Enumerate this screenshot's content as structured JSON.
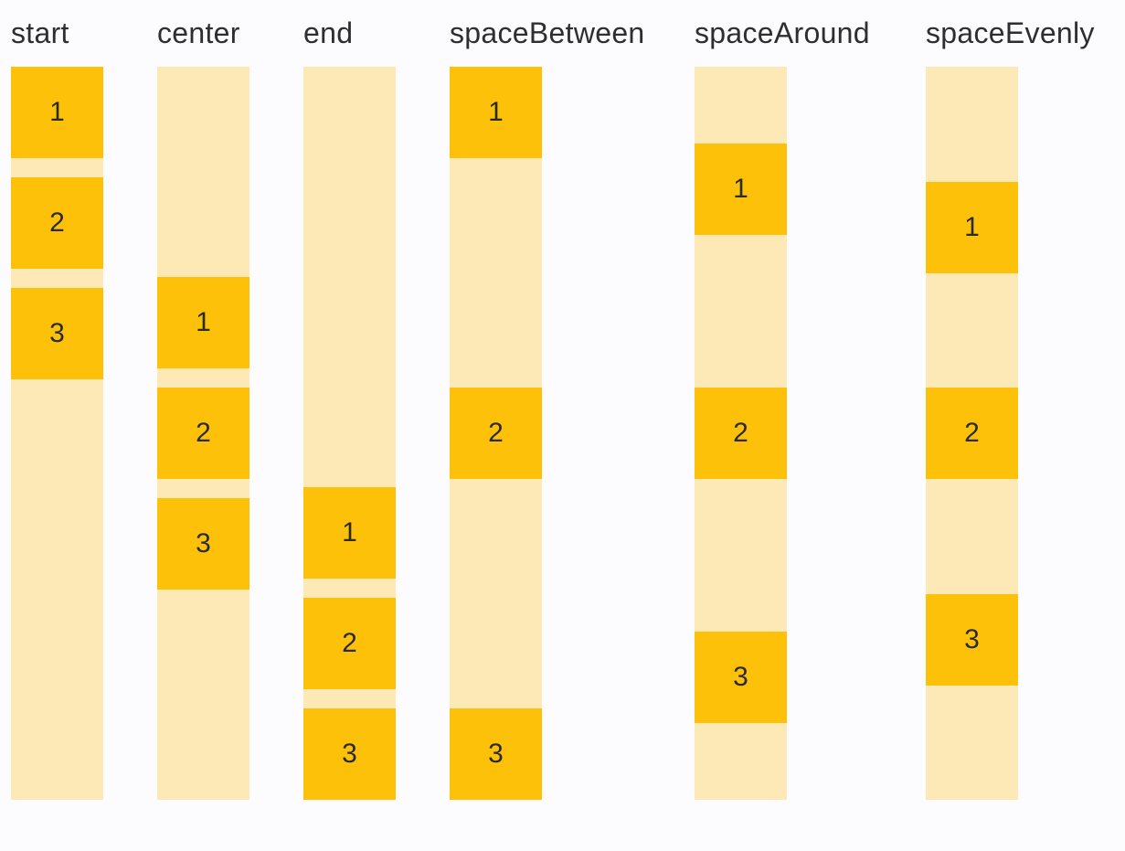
{
  "colors": {
    "page_background": "#FCFCFE",
    "track_background": "#FCE9B5",
    "item_box": "#FDC10A",
    "label_text": "#2E2E2E",
    "number_text": "#2B2B2B"
  },
  "columns": [
    {
      "label": "start",
      "items": [
        "1",
        "2",
        "3"
      ]
    },
    {
      "label": "center",
      "items": [
        "1",
        "2",
        "3"
      ]
    },
    {
      "label": "end",
      "items": [
        "1",
        "2",
        "3"
      ]
    },
    {
      "label": "spaceBetween",
      "items": [
        "1",
        "2",
        "3"
      ]
    },
    {
      "label": "spaceAround",
      "items": [
        "1",
        "2",
        "3"
      ]
    },
    {
      "label": "spaceEvenly",
      "items": [
        "1",
        "2",
        "3"
      ]
    }
  ]
}
